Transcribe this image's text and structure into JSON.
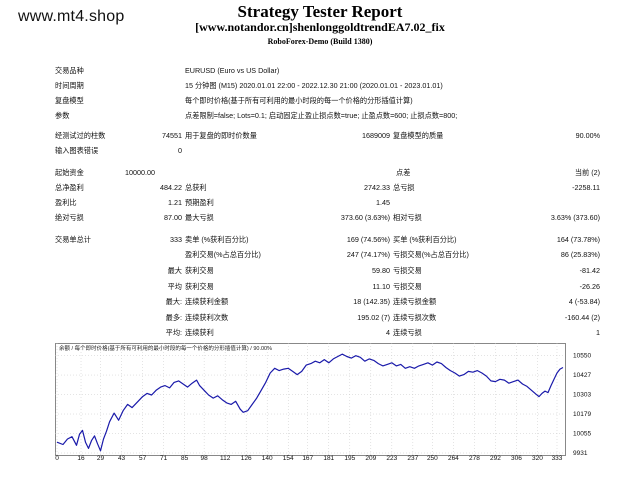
{
  "watermark": "www.mt4.shop",
  "header": {
    "title": "Strategy Tester Report",
    "subtitle": "[www.notandor.cn]shenlonggoldtrendEA7.02_fix",
    "build": "RoboForex-Demo (Build 1380)"
  },
  "info": {
    "symbol_label": "交易品种",
    "symbol_value": "EURUSD (Euro vs US Dollar)",
    "period_label": "时间周期",
    "period_value": "15 分钟图 (M15) 2020.01.01 22:00 - 2022.12.30 21:00 (2020.01.01 - 2023.01.01)",
    "model_label": "复盘模型",
    "model_value": "每个即时价格(基于所有可利用的最小时段的每一个价格的分形插值计算)",
    "params_label": "参数",
    "params_value": "点差限制=false; Lots=0.1; 启动固定止盈止损点数=true; 止盈点数=600; 止损点数=800;"
  },
  "stats": {
    "bars_label": "经测试过的柱数",
    "bars_value": "74551",
    "ticks_label": "用于复盘的即时价数量",
    "ticks_value": "1689009",
    "quality_label": "复盘模型的质量",
    "quality_value": "90.00%",
    "errors_label": "输入图表错误",
    "errors_value": "0",
    "deposit_label": "起始资金",
    "deposit_value": "10000.00",
    "spread_label": "点差",
    "spread_value": "当前 (2)",
    "net_label": "总净盈利",
    "net_value": "484.22",
    "gross_profit_label": "总获利",
    "gross_profit_value": "2742.33",
    "gross_loss_label": "总亏损",
    "gross_loss_value": "-2258.11",
    "pf_label": "盈利比",
    "pf_value": "1.21",
    "payoff_label": "预期盈利",
    "payoff_value": "1.45",
    "abs_dd_label": "绝对亏损",
    "abs_dd_value": "87.00",
    "max_dd_label": "最大亏损",
    "max_dd_value": "373.60 (3.63%)",
    "rel_dd_label": "相对亏损",
    "rel_dd_value": "3.63% (373.60)",
    "trades_label": "交易单总计",
    "trades_value": "333",
    "short_label": "卖单 (%获利百分比)",
    "short_value": "169 (74.56%)",
    "long_label": "买单 (%获利百分比)",
    "long_value": "164 (73.78%)",
    "profit_trades_label": "盈利交易(%占总百分比)",
    "profit_trades_value": "247 (74.17%)",
    "loss_trades_label": "亏损交易(%占总百分比)",
    "loss_trades_value": "86 (25.83%)",
    "largest_prefix": "最大",
    "largest_profit_label": "获利交易",
    "largest_profit_value": "59.80",
    "largest_loss_label": "亏损交易",
    "largest_loss_value": "-81.42",
    "average_prefix": "平均",
    "avg_profit_label": "获利交易",
    "avg_profit_value": "11.10",
    "avg_loss_label": "亏损交易",
    "avg_loss_value": "-26.26",
    "max_prefix1": "最大:",
    "max_cons_wins_label": "连续获利金额",
    "max_cons_wins_value": "18 (142.35)",
    "max_cons_losses_label": "连续亏损金额",
    "max_cons_losses_value": "4 (-53.84)",
    "max_prefix2": "最多:",
    "max_cons_profit_label": "连续获利次数",
    "max_cons_profit_value": "195.02 (7)",
    "max_cons_loss_label": "连续亏损次数",
    "max_cons_loss_value": "-160.44 (2)",
    "avg_prefix2": "平均:",
    "avg_cons_wins_label": "连续获利",
    "avg_cons_wins_value": "4",
    "avg_cons_losses_label": "连续亏损",
    "avg_cons_losses_value": "1"
  },
  "chart_data": {
    "type": "line",
    "legend": "余额 / 每个即时价格(基于所有可利用的最小时段的每一个价格的分形插值计算) / 90.00%",
    "x_ticks": [
      0,
      16,
      29,
      43,
      57,
      71,
      85,
      98,
      112,
      126,
      140,
      154,
      167,
      181,
      195,
      209,
      223,
      237,
      250,
      264,
      278,
      292,
      306,
      320,
      333
    ],
    "y_ticks": [
      10550,
      10427,
      10303,
      10179,
      10055,
      9931
    ],
    "ylim": [
      9931,
      10580
    ],
    "xlim": [
      0,
      337
    ],
    "colors": {
      "line": "#1a1aaa",
      "grid": "#c8c8c8",
      "highlight": "#2a7a2a"
    },
    "series": [
      {
        "values": [
          [
            0,
            10000
          ],
          [
            4,
            9985
          ],
          [
            7,
            10020
          ],
          [
            10,
            10035
          ],
          [
            13,
            9980
          ],
          [
            15,
            10050
          ],
          [
            17,
            10075
          ],
          [
            19,
            10000
          ],
          [
            21,
            9960
          ],
          [
            23,
            10010
          ],
          [
            25,
            10040
          ],
          [
            27,
            9990
          ],
          [
            29,
            9945
          ],
          [
            31,
            10020
          ],
          [
            33,
            10070
          ],
          [
            35,
            10130
          ],
          [
            38,
            10185
          ],
          [
            41,
            10140
          ],
          [
            44,
            10200
          ],
          [
            47,
            10240
          ],
          [
            50,
            10220
          ],
          [
            54,
            10260
          ],
          [
            57,
            10290
          ],
          [
            60,
            10310
          ],
          [
            63,
            10300
          ],
          [
            66,
            10330
          ],
          [
            69,
            10350
          ],
          [
            72,
            10360
          ],
          [
            75,
            10345
          ],
          [
            78,
            10380
          ],
          [
            81,
            10390
          ],
          [
            84,
            10370
          ],
          [
            87,
            10350
          ],
          [
            90,
            10375
          ],
          [
            93,
            10395
          ],
          [
            95,
            10360
          ],
          [
            98,
            10330
          ],
          [
            101,
            10300
          ],
          [
            104,
            10280
          ],
          [
            107,
            10295
          ],
          [
            110,
            10270
          ],
          [
            113,
            10250
          ],
          [
            116,
            10240
          ],
          [
            119,
            10260
          ],
          [
            122,
            10210
          ],
          [
            124,
            10190
          ],
          [
            127,
            10200
          ],
          [
            130,
            10240
          ],
          [
            133,
            10280
          ],
          [
            136,
            10330
          ],
          [
            139,
            10380
          ],
          [
            142,
            10440
          ],
          [
            145,
            10470
          ],
          [
            148,
            10455
          ],
          [
            151,
            10465
          ],
          [
            154,
            10470
          ],
          [
            157,
            10450
          ],
          [
            160,
            10430
          ],
          [
            163,
            10450
          ],
          [
            166,
            10490
          ],
          [
            169,
            10500
          ],
          [
            172,
            10515
          ],
          [
            175,
            10505
          ],
          [
            178,
            10525
          ],
          [
            181,
            10505
          ],
          [
            184,
            10530
          ],
          [
            187,
            10545
          ],
          [
            190,
            10560
          ],
          [
            193,
            10545
          ],
          [
            196,
            10535
          ],
          [
            199,
            10550
          ],
          [
            202,
            10540
          ],
          [
            205,
            10515
          ],
          [
            208,
            10530
          ],
          [
            211,
            10520
          ],
          [
            214,
            10500
          ],
          [
            217,
            10485
          ],
          [
            220,
            10495
          ],
          [
            223,
            10505
          ],
          [
            226,
            10485
          ],
          [
            229,
            10495
          ],
          [
            232,
            10470
          ],
          [
            235,
            10480
          ],
          [
            238,
            10470
          ],
          [
            241,
            10485
          ],
          [
            244,
            10495
          ],
          [
            247,
            10505
          ],
          [
            250,
            10490
          ],
          [
            253,
            10510
          ],
          [
            256,
            10500
          ],
          [
            259,
            10475
          ],
          [
            262,
            10455
          ],
          [
            265,
            10440
          ],
          [
            268,
            10420
          ],
          [
            271,
            10430
          ],
          [
            274,
            10450
          ],
          [
            277,
            10445
          ],
          [
            280,
            10455
          ],
          [
            283,
            10440
          ],
          [
            286,
            10420
          ],
          [
            289,
            10390
          ],
          [
            292,
            10385
          ],
          [
            295,
            10400
          ],
          [
            298,
            10395
          ],
          [
            301,
            10375
          ],
          [
            304,
            10385
          ],
          [
            307,
            10395
          ],
          [
            310,
            10370
          ],
          [
            313,
            10355
          ],
          [
            316,
            10330
          ],
          [
            319,
            10305
          ],
          [
            321,
            10290
          ],
          [
            323,
            10310
          ],
          [
            325,
            10325
          ],
          [
            327,
            10315
          ],
          [
            329,
            10360
          ],
          [
            331,
            10400
          ],
          [
            333,
            10440
          ],
          [
            335,
            10465
          ],
          [
            337,
            10475
          ]
        ]
      }
    ]
  }
}
